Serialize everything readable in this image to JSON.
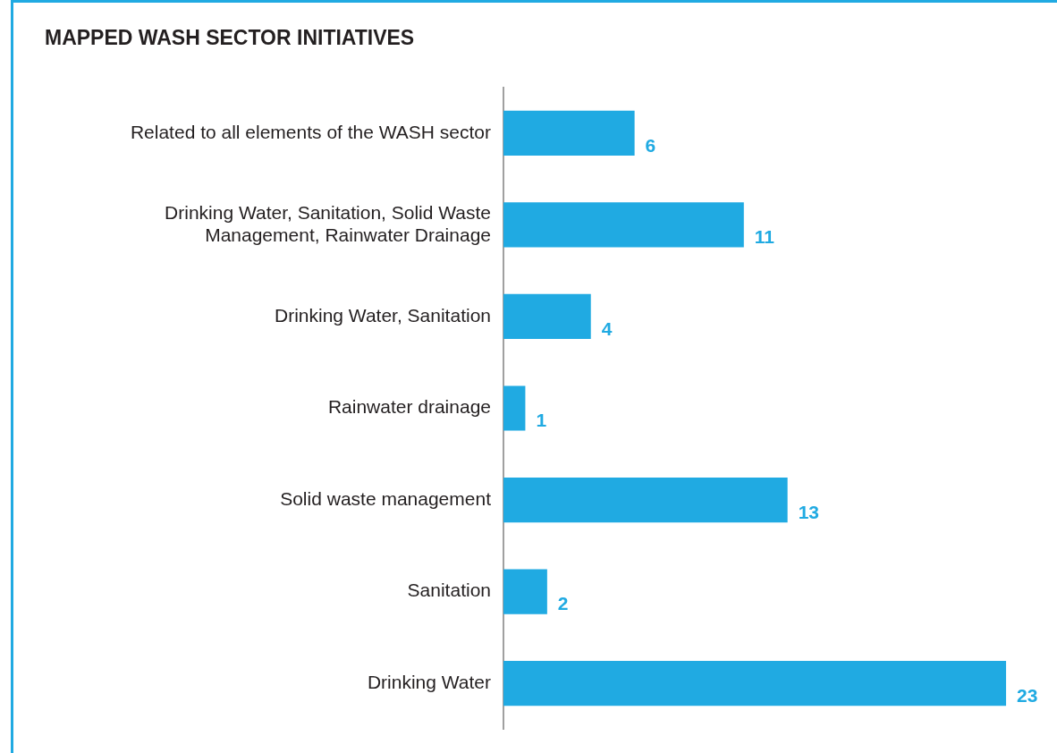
{
  "chart_data": {
    "type": "bar",
    "orientation": "horizontal",
    "title": "MAPPED WASH SECTOR INITIATIVES",
    "categories": [
      "Related to all elements of the WASH sector",
      "Drinking Water, Sanitation, Solid Waste Management, Rainwater Drainage",
      "Drinking Water, Sanitation",
      "Rainwater drainage",
      "Solid waste management",
      "Sanitation",
      "Drinking Water"
    ],
    "values": [
      6,
      11,
      4,
      1,
      13,
      2,
      23
    ],
    "color": "#20aae2",
    "data_labels": true,
    "grid": false,
    "legend": false,
    "tick_labels": "y"
  }
}
